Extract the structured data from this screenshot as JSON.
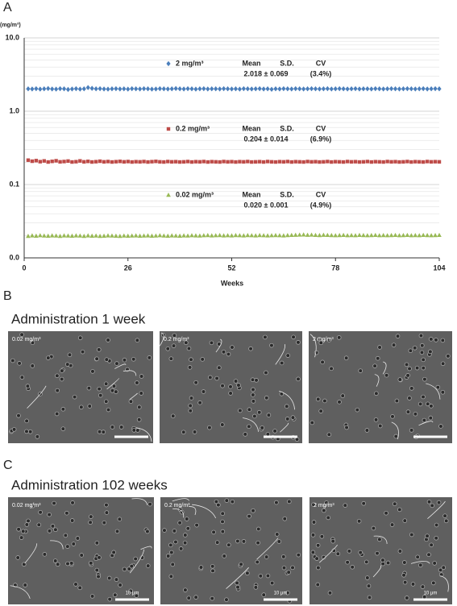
{
  "chart_data": {
    "type": "scatter",
    "log_y": true,
    "grid": true,
    "y_unit": "(mg/m³)",
    "xlabel": "Weeks",
    "xlim": [
      0,
      104
    ],
    "xticks": [
      0,
      26,
      52,
      78,
      104
    ],
    "ylim": [
      0.01,
      10
    ],
    "yticks": [
      {
        "value": 0.01,
        "label": "0.0"
      },
      0.1,
      {
        "value": 1,
        "label": "1.0"
      },
      {
        "value": 10,
        "label": "10.0"
      }
    ],
    "yticks_minor": [
      0.02,
      0.03,
      0.04,
      0.05,
      0.06,
      0.07,
      0.08,
      0.09,
      0.2,
      0.3,
      0.4,
      0.5,
      0.6,
      0.7,
      0.8,
      0.9,
      2,
      3,
      4,
      5,
      6,
      7,
      8,
      9
    ],
    "stat_headers": [
      "Mean",
      "S.D.",
      "CV"
    ],
    "x": [
      1,
      2,
      3,
      4,
      5,
      6,
      7,
      8,
      9,
      10,
      11,
      12,
      13,
      14,
      15,
      16,
      17,
      18,
      19,
      20,
      21,
      22,
      23,
      24,
      25,
      26,
      27,
      28,
      29,
      30,
      31,
      32,
      33,
      34,
      35,
      36,
      37,
      38,
      39,
      40,
      41,
      42,
      43,
      44,
      45,
      46,
      47,
      48,
      49,
      50,
      51,
      52,
      53,
      54,
      55,
      56,
      57,
      58,
      59,
      60,
      61,
      62,
      63,
      64,
      65,
      66,
      67,
      68,
      69,
      70,
      71,
      72,
      73,
      74,
      75,
      76,
      77,
      78,
      79,
      80,
      81,
      82,
      83,
      84,
      85,
      86,
      87,
      88,
      89,
      90,
      91,
      92,
      93,
      94,
      95,
      96,
      97,
      98,
      99,
      100,
      101,
      102,
      103,
      104
    ],
    "series": [
      {
        "name": "2 mg/m³",
        "color": "#4a7ebb",
        "marker": "diamond",
        "stats": "2.018 ± 0.069",
        "cv": "(3.4%)",
        "values": [
          2.02,
          2.01,
          2.03,
          2.0,
          2.02,
          2.04,
          2.01,
          2.0,
          2.03,
          2.02,
          1.98,
          2.01,
          2.03,
          2.0,
          2.02,
          2.1,
          2.05,
          2.02,
          2.03,
          2.01,
          2.0,
          2.02,
          2.03,
          2.01,
          2.02,
          2.0,
          2.03,
          2.02,
          2.01,
          2.03,
          2.02,
          2.0,
          2.01,
          2.03,
          2.02,
          2.01,
          2.02,
          2.04,
          2.02,
          2.01,
          2.03,
          2.02,
          2.0,
          2.02,
          2.03,
          2.01,
          2.02,
          2.02,
          2.01,
          2.03,
          2.02,
          2.01,
          2.02,
          2.0,
          2.03,
          2.02,
          2.01,
          2.02,
          2.03,
          2.01,
          2.02,
          1.99,
          2.02,
          2.01,
          2.03,
          2.02,
          2.01,
          2.03,
          2.02,
          2.01,
          2.02,
          2.03,
          2.02,
          2.01,
          2.02,
          2.03,
          2.01,
          2.02,
          2.03,
          2.02,
          2.01,
          2.02,
          2.03,
          2.01,
          2.02,
          2.02,
          2.01,
          2.03,
          2.02,
          2.01,
          2.02,
          2.03,
          2.02,
          2.01,
          2.02,
          2.03,
          2.02,
          2.01,
          2.02,
          2.03,
          2.01,
          2.02,
          2.03,
          2.02
        ]
      },
      {
        "name": "0.2 mg/m³",
        "color": "#be4b48",
        "marker": "square",
        "stats": "0.204 ± 0.014",
        "cv": "(6.9%)",
        "values": [
          0.215,
          0.208,
          0.212,
          0.205,
          0.21,
          0.203,
          0.207,
          0.211,
          0.204,
          0.206,
          0.209,
          0.203,
          0.205,
          0.21,
          0.204,
          0.207,
          0.203,
          0.205,
          0.208,
          0.204,
          0.206,
          0.203,
          0.205,
          0.207,
          0.204,
          0.206,
          0.203,
          0.205,
          0.204,
          0.206,
          0.203,
          0.205,
          0.207,
          0.204,
          0.203,
          0.206,
          0.204,
          0.205,
          0.203,
          0.204,
          0.206,
          0.203,
          0.205,
          0.204,
          0.206,
          0.203,
          0.205,
          0.204,
          0.203,
          0.206,
          0.204,
          0.205,
          0.203,
          0.205,
          0.204,
          0.206,
          0.203,
          0.204,
          0.205,
          0.203,
          0.206,
          0.204,
          0.203,
          0.205,
          0.204,
          0.206,
          0.203,
          0.205,
          0.204,
          0.203,
          0.206,
          0.204,
          0.205,
          0.203,
          0.204,
          0.206,
          0.203,
          0.205,
          0.204,
          0.203,
          0.206,
          0.204,
          0.205,
          0.203,
          0.204,
          0.206,
          0.203,
          0.205,
          0.204,
          0.203,
          0.206,
          0.204,
          0.205,
          0.203,
          0.204,
          0.206,
          0.203,
          0.205,
          0.204,
          0.203,
          0.206,
          0.204,
          0.205,
          0.204
        ]
      },
      {
        "name": "0.02 mg/m³",
        "color": "#98b954",
        "marker": "triangle",
        "stats": "0.020 ± 0.001",
        "cv": "(4.9%)",
        "values": [
          0.0198,
          0.0201,
          0.0199,
          0.0202,
          0.02,
          0.0199,
          0.0201,
          0.02,
          0.0198,
          0.0201,
          0.02,
          0.0199,
          0.0201,
          0.02,
          0.0198,
          0.0201,
          0.0199,
          0.02,
          0.0198,
          0.0199,
          0.0201,
          0.02,
          0.0199,
          0.0198,
          0.02,
          0.0199,
          0.02,
          0.0201,
          0.0199,
          0.02,
          0.0201,
          0.0199,
          0.02,
          0.0202,
          0.02,
          0.0199,
          0.0201,
          0.02,
          0.0199,
          0.0201,
          0.02,
          0.0202,
          0.0201,
          0.02,
          0.0202,
          0.0203,
          0.0201,
          0.0202,
          0.0203,
          0.0201,
          0.0202,
          0.0201,
          0.0203,
          0.0202,
          0.0201,
          0.0203,
          0.0202,
          0.0201,
          0.0203,
          0.0202,
          0.0201,
          0.0202,
          0.0203,
          0.0202,
          0.0201,
          0.0203,
          0.0204,
          0.0205,
          0.0206,
          0.0207,
          0.0205,
          0.0206,
          0.0204,
          0.0203,
          0.0205,
          0.0204,
          0.0203,
          0.0202,
          0.0203,
          0.0204,
          0.0202,
          0.0203,
          0.0202,
          0.0204,
          0.0203,
          0.0202,
          0.0203,
          0.0204,
          0.0202,
          0.0203,
          0.0202,
          0.0203,
          0.0204,
          0.0202,
          0.0203,
          0.0204,
          0.0202,
          0.0203,
          0.0202,
          0.0204,
          0.0203,
          0.0202,
          0.0203,
          0.0204
        ]
      }
    ]
  },
  "figure": {
    "panel_labels": [
      "A",
      "B",
      "C"
    ],
    "sections": [
      {
        "title": "Administration 1 week",
        "images": [
          {
            "label": "0.02 mg/m³"
          },
          {
            "label": "0.2 mg/m³"
          },
          {
            "label": "2 mg/m³"
          }
        ]
      },
      {
        "title": "Administration 102 weeks",
        "scale_label": "10 μm",
        "images": [
          {
            "label": "0.02 mg/m³"
          },
          {
            "label": "0.2 mg/m³"
          },
          {
            "label": "2 mg/m³"
          }
        ]
      }
    ]
  }
}
